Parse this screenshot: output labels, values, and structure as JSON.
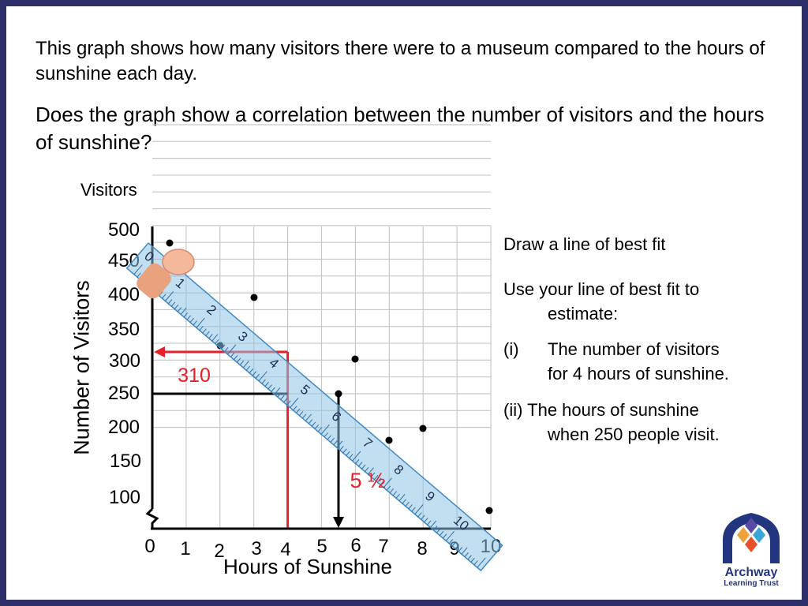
{
  "slide": {
    "intro": "This graph shows how many visitors there were to a museum compared to the hours of sunshine each day.",
    "question": "Does the graph show a correlation between the number of visitors and the hours of sunshine?"
  },
  "side_panel": {
    "task_1": "Draw a line of best fit",
    "task_2_line1": "Use your line of best fit to",
    "task_2_line2": "estimate:",
    "item_i_num": "(i)",
    "item_i_line1": "The number of visitors",
    "item_i_line2": "for 4 hours of sunshine.",
    "item_ii_line1": "(ii) The hours of sunshine",
    "item_ii_line2": "when 250 people visit."
  },
  "chart_data": {
    "type": "scatter",
    "top_label": "Visitors",
    "xlabel": "Hours of Sunshine",
    "ylabel": "Number of Visitors",
    "x_ticks": [
      "0",
      "1",
      "2",
      "3",
      "4",
      "5",
      "6",
      "7",
      "8",
      "9",
      "10"
    ],
    "y_ticks": [
      "100",
      "150",
      "200",
      "250",
      "300",
      "350",
      "400",
      "450",
      "500"
    ],
    "xlim": [
      0,
      10
    ],
    "ylim": [
      50,
      500
    ],
    "axis_break": true,
    "grid": true,
    "points": [
      {
        "x": 0.5,
        "y": 475
      },
      {
        "x": 2,
        "y": 322
      },
      {
        "x": 3,
        "y": 392
      },
      {
        "x": 5.5,
        "y": 250
      },
      {
        "x": 6,
        "y": 300
      },
      {
        "x": 7,
        "y": 230
      },
      {
        "x": 8,
        "y": 200
      },
      {
        "x": 10,
        "y": 80
      }
    ],
    "annotations": [
      {
        "text": "310",
        "color": "#e8202a",
        "x": 4,
        "y": 310
      },
      {
        "text": "5 ½",
        "color": "#e8202a",
        "x": 5.5,
        "y": 250
      }
    ],
    "ruler_labels": [
      "0",
      "1",
      "2",
      "3",
      "4",
      "5",
      "6",
      "7",
      "8",
      "9",
      "10"
    ],
    "colors": {
      "answer": "#e8202a",
      "grid": "#c8c8c8",
      "ruler": "#8fc3e6"
    }
  },
  "logo": {
    "line1": "Archway",
    "line2": "Learning Trust"
  }
}
